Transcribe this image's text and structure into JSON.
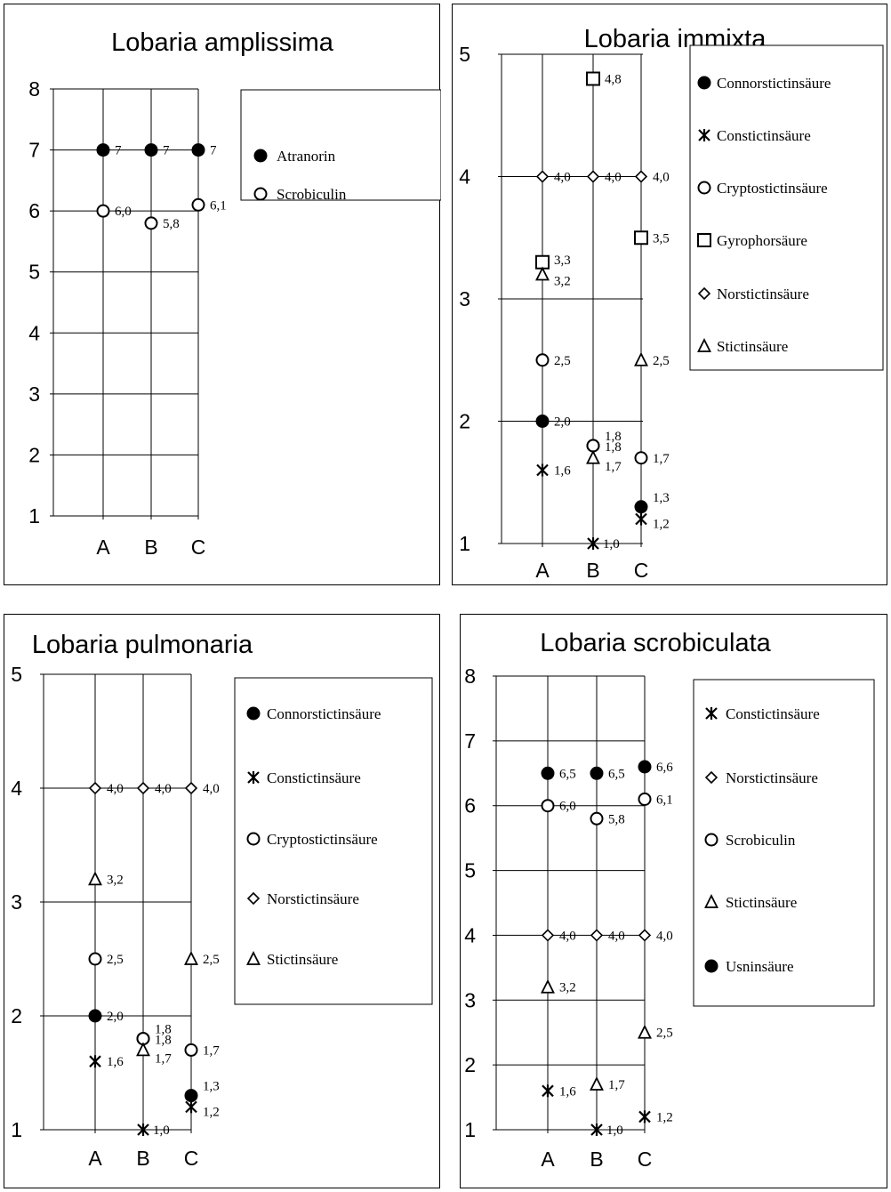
{
  "chart_data": [
    {
      "type": "scatter",
      "title": "Lobaria amplissima",
      "categories": [
        "A",
        "B",
        "C"
      ],
      "ylim": [
        1,
        8
      ],
      "yticks": [
        1,
        2,
        3,
        4,
        5,
        6,
        7,
        8
      ],
      "grid": true,
      "legend_position": "right",
      "series": [
        {
          "name": "Atranorin",
          "marker": "filled-circle",
          "values": [
            7,
            7,
            7
          ],
          "labels": [
            "7",
            "7",
            "7"
          ]
        },
        {
          "name": "Scrobiculin",
          "marker": "open-circle",
          "values": [
            6.0,
            5.8,
            6.1
          ],
          "labels": [
            "6,0",
            "5,8",
            "6,1"
          ]
        }
      ]
    },
    {
      "type": "scatter",
      "title": "Lobaria immixta",
      "categories": [
        "A",
        "B",
        "C"
      ],
      "ylim": [
        1,
        5
      ],
      "yticks": [
        1,
        2,
        3,
        4,
        5
      ],
      "grid": true,
      "legend_position": "right",
      "series": [
        {
          "name": "Connorstictinsäure",
          "marker": "filled-circle",
          "values": [
            2.0,
            1.8,
            1.3
          ],
          "labels": [
            "2,0",
            "1,8",
            "1,3"
          ]
        },
        {
          "name": "Constictinsäure",
          "marker": "asterisk",
          "values": [
            1.6,
            1.0,
            1.2
          ],
          "labels": [
            "1,6",
            "1,0",
            "1,2"
          ]
        },
        {
          "name": "Cryptostictinsäure",
          "marker": "open-circle",
          "values": [
            2.5,
            1.8,
            1.7
          ],
          "labels": [
            "2,5",
            "1,8",
            "1,7"
          ]
        },
        {
          "name": "Gyrophorsäure",
          "marker": "square",
          "values": [
            3.3,
            4.8,
            3.5
          ],
          "labels": [
            "3,3",
            "4,8",
            "3,5"
          ]
        },
        {
          "name": "Norstictinsäure",
          "marker": "diamond",
          "values": [
            4.0,
            4.0,
            4.0
          ],
          "labels": [
            "4,0",
            "4,0",
            "4,0"
          ]
        },
        {
          "name": "Stictinsäure",
          "marker": "triangle",
          "values": [
            3.2,
            1.7,
            2.5
          ],
          "labels": [
            "3,2",
            "1,7",
            "2,5"
          ]
        }
      ]
    },
    {
      "type": "scatter",
      "title": "Lobaria pulmonaria",
      "categories": [
        "A",
        "B",
        "C"
      ],
      "ylim": [
        1,
        5
      ],
      "yticks": [
        1,
        2,
        3,
        4,
        5
      ],
      "grid": true,
      "legend_position": "right",
      "series": [
        {
          "name": "Connorstictinsäure",
          "marker": "filled-circle",
          "values": [
            2.0,
            1.8,
            1.3
          ],
          "labels": [
            "2,0",
            "1,8",
            "1,3"
          ]
        },
        {
          "name": "Constictinsäure",
          "marker": "asterisk",
          "values": [
            1.6,
            1.0,
            1.2
          ],
          "labels": [
            "1,6",
            "1,0",
            "1,2"
          ]
        },
        {
          "name": "Cryptostictinsäure",
          "marker": "open-circle",
          "values": [
            2.5,
            1.8,
            1.7
          ],
          "labels": [
            "2,5",
            "1,8",
            "1,7"
          ]
        },
        {
          "name": "Norstictinsäure",
          "marker": "diamond",
          "values": [
            4.0,
            4.0,
            4.0
          ],
          "labels": [
            "4,0",
            "4,0",
            "4,0"
          ]
        },
        {
          "name": "Stictinsäure",
          "marker": "triangle",
          "values": [
            3.2,
            1.7,
            2.5
          ],
          "labels": [
            "3,2",
            "1,7",
            "2,5"
          ]
        }
      ]
    },
    {
      "type": "scatter",
      "title": "Lobaria scrobiculata",
      "categories": [
        "A",
        "B",
        "C"
      ],
      "ylim": [
        1,
        8
      ],
      "yticks": [
        1,
        2,
        3,
        4,
        5,
        6,
        7,
        8
      ],
      "grid": true,
      "legend_position": "right",
      "series": [
        {
          "name": "Constictinsäure",
          "marker": "asterisk",
          "values": [
            1.6,
            1.0,
            1.2
          ],
          "labels": [
            "1,6",
            "1,0",
            "1,2"
          ]
        },
        {
          "name": "Norstictinsäure",
          "marker": "diamond",
          "values": [
            4.0,
            4.0,
            4.0
          ],
          "labels": [
            "4,0",
            "4,0",
            "4,0"
          ]
        },
        {
          "name": "Scrobiculin",
          "marker": "open-circle",
          "values": [
            6.0,
            5.8,
            6.1
          ],
          "labels": [
            "6,0",
            "5,8",
            "6,1"
          ]
        },
        {
          "name": "Stictinsäure",
          "marker": "triangle",
          "values": [
            3.2,
            1.7,
            2.5
          ],
          "labels": [
            "3,2",
            "1,7",
            "2,5"
          ]
        },
        {
          "name": "Usninsäure",
          "marker": "filled-circle",
          "values": [
            6.5,
            6.5,
            6.6
          ],
          "labels": [
            "6,5",
            "6,5",
            "6,6"
          ]
        }
      ]
    }
  ]
}
